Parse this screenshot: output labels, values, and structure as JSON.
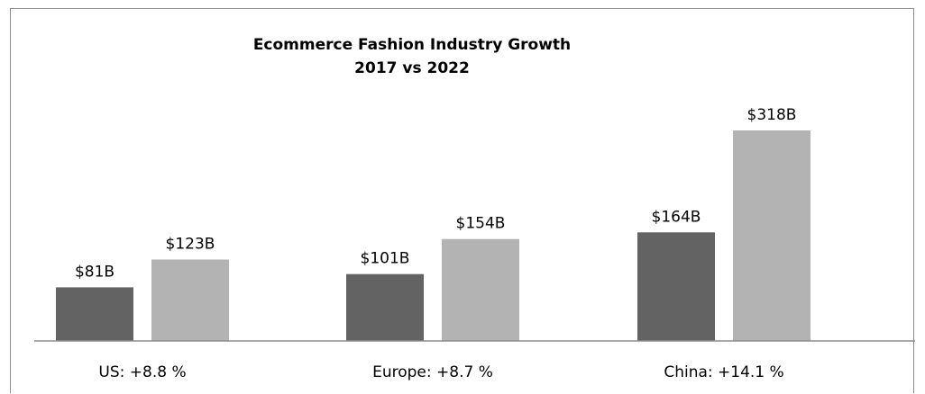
{
  "chart_data": {
    "type": "bar",
    "title": "Ecommerce Fashion Industry Growth",
    "subtitle": "2017 vs 2022",
    "xlabel": "",
    "ylabel": "",
    "grid": false,
    "legend": "none",
    "ylim": [
      0,
      340
    ],
    "categories": [
      "US: +8.8 %",
      "Europe: +8.7 %",
      "China: +14.1 %"
    ],
    "series": [
      {
        "values": [
          81,
          101,
          164
        ],
        "labels": [
          "$81B",
          "$101B",
          "$164B"
        ],
        "color": "#636363"
      },
      {
        "values": [
          123,
          154,
          318
        ],
        "labels": [
          "$123B",
          "$154B",
          "$318B"
        ],
        "color": "#b3b3b3"
      }
    ]
  },
  "colors": {
    "axis": "#8c8c8c",
    "frame": "#8c8c8c"
  }
}
